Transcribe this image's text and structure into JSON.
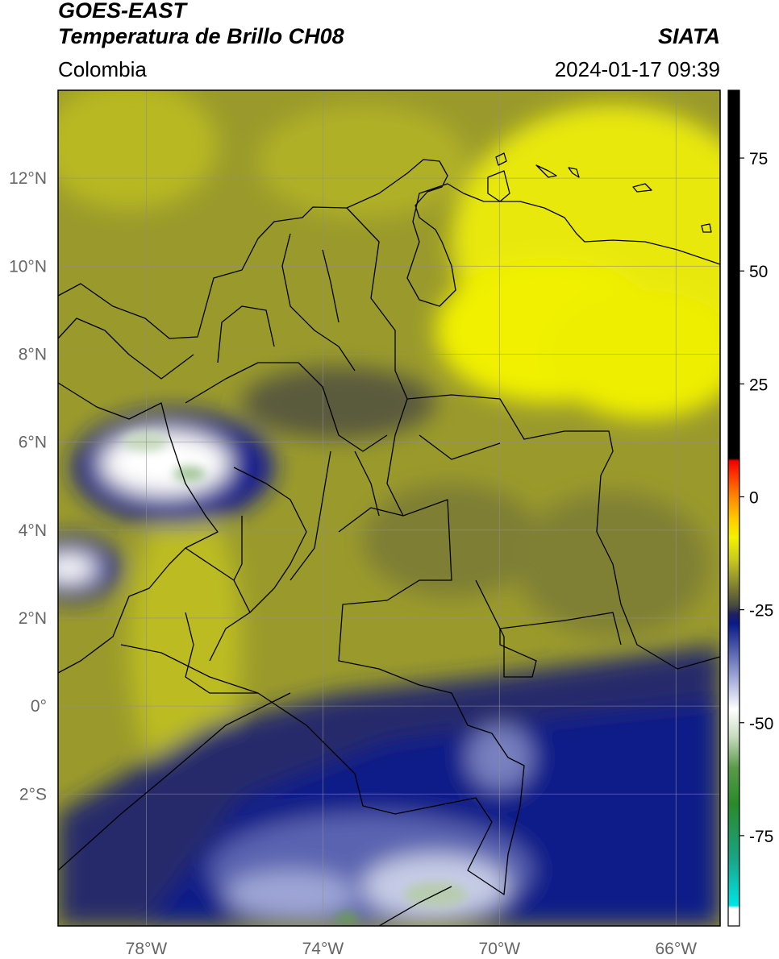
{
  "header": {
    "satellite": "GOES-EAST",
    "product": "Temperatura de Brillo CH08",
    "brand": "SIATA",
    "region": "Colombia",
    "datetime": "2024-01-17 09:39"
  },
  "map": {
    "lon_range": [
      -80,
      -65
    ],
    "lat_range": [
      -5,
      14
    ],
    "lon_ticks": [
      {
        "value": -78,
        "label": "78°W"
      },
      {
        "value": -74,
        "label": "74°W"
      },
      {
        "value": -70,
        "label": "70°W"
      },
      {
        "value": -66,
        "label": "66°W"
      }
    ],
    "lat_ticks": [
      {
        "value": 12,
        "label": "12°N"
      },
      {
        "value": 10,
        "label": "10°N"
      },
      {
        "value": 8,
        "label": "8°N"
      },
      {
        "value": 6,
        "label": "6°N"
      },
      {
        "value": 4,
        "label": "4°N"
      },
      {
        "value": 2,
        "label": "2°N"
      },
      {
        "value": 0,
        "label": "0°"
      },
      {
        "value": -2,
        "label": "2°S"
      }
    ],
    "gridlines": true
  },
  "colorbar": {
    "range": [
      -95,
      90
    ],
    "ticks": [
      {
        "value": 75,
        "label": "75"
      },
      {
        "value": 50,
        "label": "50"
      },
      {
        "value": 25,
        "label": "25"
      },
      {
        "value": 0,
        "label": "0"
      },
      {
        "value": -25,
        "label": "-25"
      },
      {
        "value": -50,
        "label": "-50"
      },
      {
        "value": -75,
        "label": "-75"
      }
    ],
    "stops": [
      {
        "value": -95,
        "color": "#ffffff"
      },
      {
        "value": -91,
        "color": "#ffffff"
      },
      {
        "value": -90.5,
        "color": "#00e5e5"
      },
      {
        "value": -80,
        "color": "#1aa385"
      },
      {
        "value": -68,
        "color": "#2a8a2a"
      },
      {
        "value": -60,
        "color": "#5a9a4a"
      },
      {
        "value": -53,
        "color": "#c8dcc0"
      },
      {
        "value": -47,
        "color": "#ffffff"
      },
      {
        "value": -40,
        "color": "#a0a8d8"
      },
      {
        "value": -32,
        "color": "#3a48a0"
      },
      {
        "value": -28,
        "color": "#0a1a88"
      },
      {
        "value": -26,
        "color": "#202060"
      },
      {
        "value": -24,
        "color": "#4a4a3e"
      },
      {
        "value": -19,
        "color": "#8a8a30"
      },
      {
        "value": -14,
        "color": "#c8c820"
      },
      {
        "value": -9,
        "color": "#f2f200"
      },
      {
        "value": -5,
        "color": "#ffcc00"
      },
      {
        "value": 0,
        "color": "#ff8800"
      },
      {
        "value": 5,
        "color": "#ff3300"
      },
      {
        "value": 8,
        "color": "#ee0000"
      },
      {
        "value": 8.5,
        "color": "#000000"
      },
      {
        "value": 90,
        "color": "#000000"
      }
    ]
  }
}
